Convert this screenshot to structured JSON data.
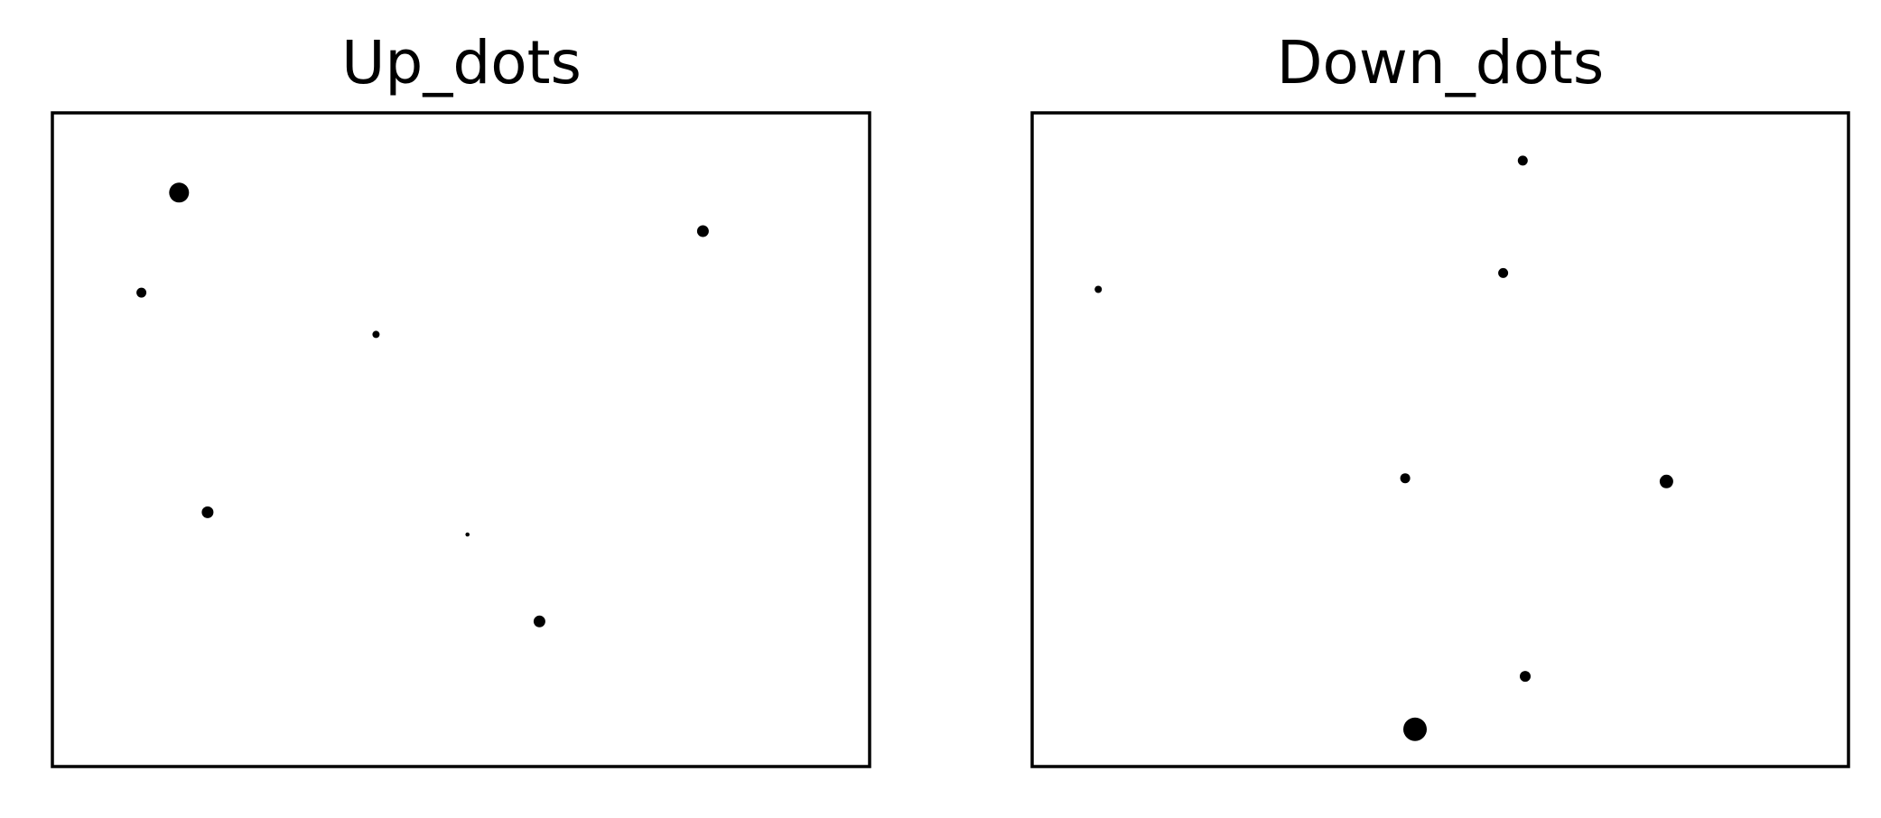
{
  "chart_data": [
    {
      "type": "scatter",
      "title": "Up_dots",
      "xlabel": "",
      "ylabel": "",
      "xticks": [],
      "yticks": [],
      "grid": false,
      "legend": null,
      "xlim": [
        0,
        1
      ],
      "ylim": [
        0,
        1
      ],
      "series": [
        {
          "color": "#000000",
          "points": [
            {
              "x": 0.155,
              "y": 0.878,
              "size": 2.2
            },
            {
              "x": 0.796,
              "y": 0.819,
              "size": 1.3
            },
            {
              "x": 0.109,
              "y": 0.725,
              "size": 1.1
            },
            {
              "x": 0.396,
              "y": 0.661,
              "size": 0.8
            },
            {
              "x": 0.19,
              "y": 0.389,
              "size": 1.3
            },
            {
              "x": 0.508,
              "y": 0.355,
              "size": 0.45
            },
            {
              "x": 0.596,
              "y": 0.222,
              "size": 1.3
            }
          ]
        }
      ]
    },
    {
      "type": "scatter",
      "title": "Down_dots",
      "xlabel": "",
      "ylabel": "",
      "xticks": [],
      "yticks": [],
      "grid": false,
      "legend": null,
      "xlim": [
        0,
        1
      ],
      "ylim": [
        0,
        1
      ],
      "series": [
        {
          "color": "#000000",
          "points": [
            {
              "x": 0.601,
              "y": 0.927,
              "size": 1.1
            },
            {
              "x": 0.577,
              "y": 0.755,
              "size": 1.1
            },
            {
              "x": 0.081,
              "y": 0.73,
              "size": 0.8
            },
            {
              "x": 0.457,
              "y": 0.441,
              "size": 1.1
            },
            {
              "x": 0.777,
              "y": 0.436,
              "size": 1.5
            },
            {
              "x": 0.604,
              "y": 0.138,
              "size": 1.2
            },
            {
              "x": 0.469,
              "y": 0.057,
              "size": 2.6
            }
          ]
        }
      ]
    }
  ]
}
